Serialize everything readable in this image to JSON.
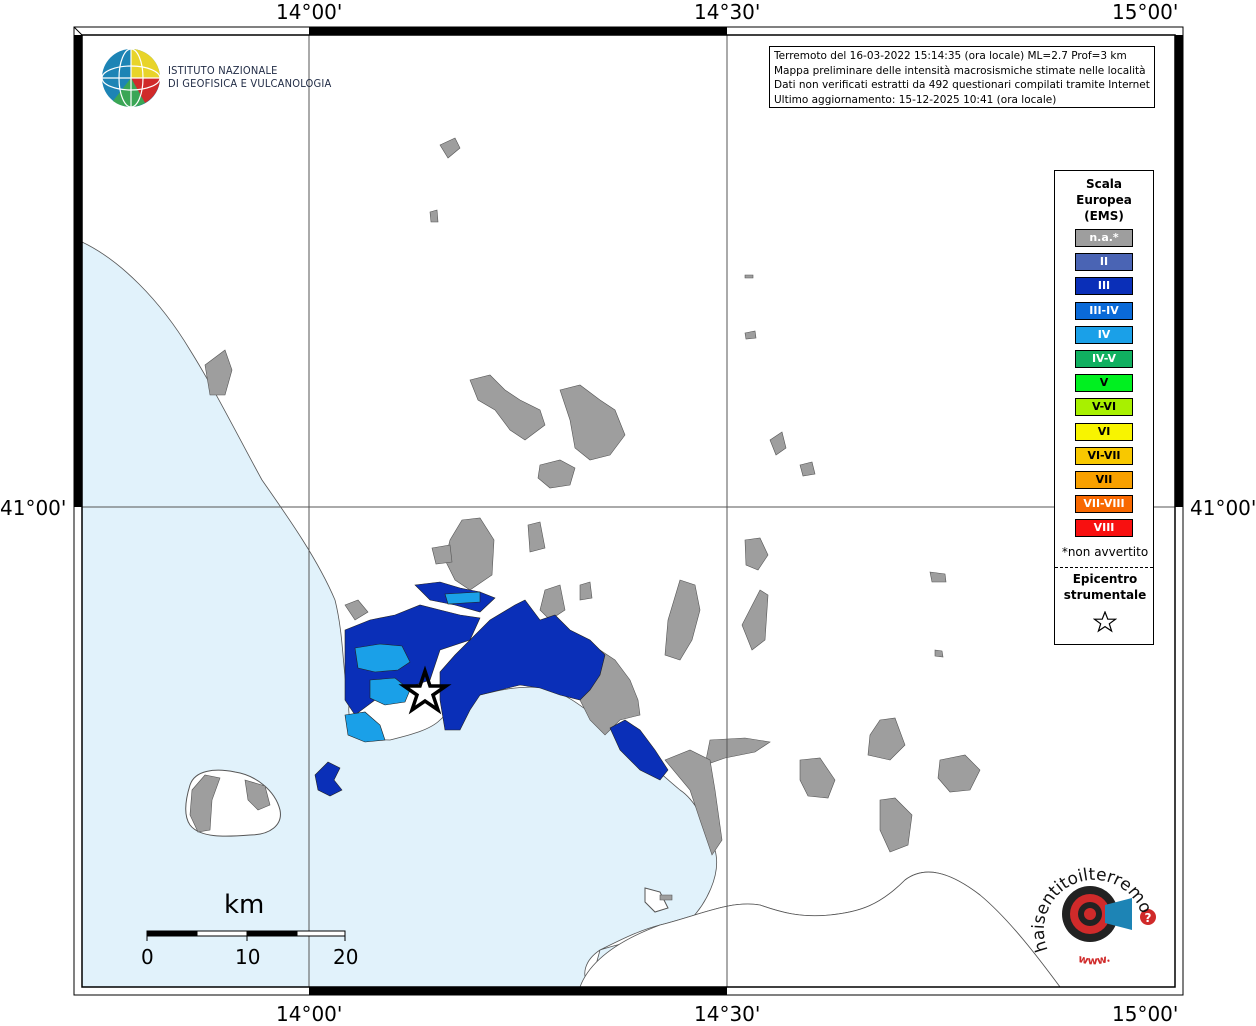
{
  "info": {
    "line1": "Terremoto del 16-03-2022 15:14:35 (ora locale) ML=2.7 Prof=3 km",
    "line2": "Mappa preliminare delle intensità macrosismiche stimate nelle località",
    "line3": "Dati non verificati estratti da 492 questionari compilati tramite Internet.",
    "line4": "Ultimo aggiornamento: 15-12-2025 10:41 (ora locale)"
  },
  "logo": {
    "line1": "ISTITUTO NAZIONALE",
    "line2": "DI GEOFISICA E VULCANOLOGIA"
  },
  "coords": {
    "top_left": "14°00'",
    "top_mid": "14°30'",
    "top_right": "15°00'",
    "bottom_left": "14°00'",
    "bottom_mid": "14°30'",
    "bottom_right": "15°00'",
    "left_lat": "41°00'",
    "right_lat": "41°00'"
  },
  "legend": {
    "title1": "Scala",
    "title2": "Europea",
    "title3": "(EMS)",
    "items": [
      {
        "label": "n.a.*",
        "color": "#9e9e9e"
      },
      {
        "label": "II",
        "color": "#4a64b4"
      },
      {
        "label": "III",
        "color": "#0a2fb8"
      },
      {
        "label": "III-IV",
        "color": "#0a6ad8"
      },
      {
        "label": "IV",
        "color": "#1aa0e8"
      },
      {
        "label": "IV-V",
        "color": "#10b060"
      },
      {
        "label": "V",
        "color": "#00f020"
      },
      {
        "label": "V-VI",
        "color": "#a8f000"
      },
      {
        "label": "VI",
        "color": "#f8f400"
      },
      {
        "label": "VI-VII",
        "color": "#f8c800"
      },
      {
        "label": "VII",
        "color": "#f8a000"
      },
      {
        "label": "VII-VIII",
        "color": "#f86800"
      },
      {
        "label": "VIII",
        "color": "#f81010"
      }
    ],
    "note": "*non avvertito",
    "epi1": "Epicentro",
    "epi2": "strumentale"
  },
  "scale": {
    "unit": "km",
    "l0": "0",
    "l10": "10",
    "l20": "20"
  },
  "badge": {
    "text": "haisentitoilterremoto.it",
    "prefix": "www."
  },
  "colors": {
    "sea": "#e1f2fb",
    "grey": "#9e9e9e",
    "int3": "#0a2fb8",
    "int4": "#1aa0e8"
  }
}
